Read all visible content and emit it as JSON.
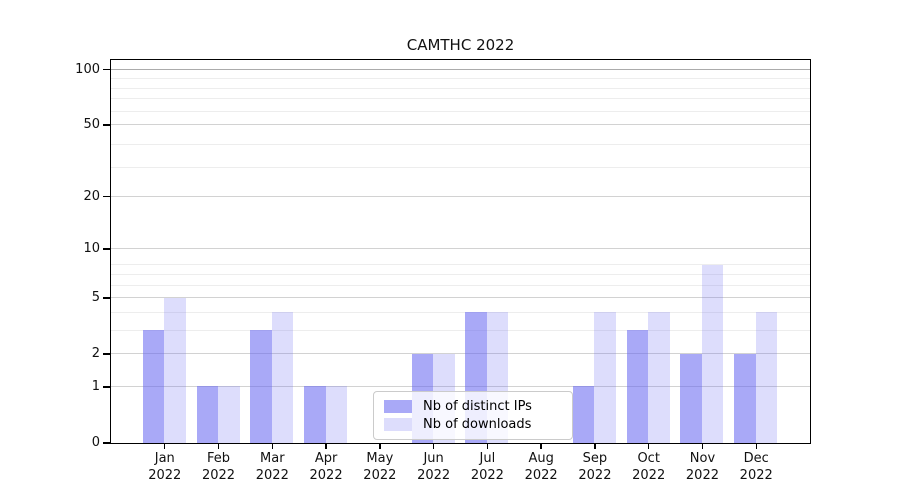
{
  "title": "CAMTHC 2022",
  "chart_data": {
    "type": "bar",
    "title": "CAMTHC 2022",
    "months": [
      "Jan",
      "Feb",
      "Mar",
      "Apr",
      "May",
      "Jun",
      "Jul",
      "Aug",
      "Sep",
      "Oct",
      "Nov",
      "Dec"
    ],
    "year": "2022",
    "categories": [
      "Jan 2022",
      "Feb 2022",
      "Mar 2022",
      "Apr 2022",
      "May 2022",
      "Jun 2022",
      "Jul 2022",
      "Aug 2022",
      "Sep 2022",
      "Oct 2022",
      "Nov 2022",
      "Dec 2022"
    ],
    "series": [
      {
        "name": "Nb of distinct IPs",
        "color": "rgba(98,98,240,0.55)",
        "values": [
          3,
          1,
          3,
          1,
          0,
          2,
          4,
          0,
          1,
          3,
          2,
          2
        ]
      },
      {
        "name": "Nb of downloads",
        "color": "rgba(98,98,240,0.22)",
        "values": [
          5,
          1,
          4,
          1,
          0,
          2,
          4,
          0,
          4,
          4,
          8,
          4
        ]
      }
    ],
    "yscale": "log1p",
    "ylim": [
      0,
      113
    ],
    "y_major_ticks": [
      0,
      1,
      2,
      5,
      10,
      20,
      50,
      100
    ],
    "y_minor_gridlines": [
      3,
      4,
      6,
      7,
      8,
      29,
      39,
      59,
      69,
      79,
      89
    ],
    "xlabel": "",
    "ylabel": "",
    "grid": "horizontal major+minor",
    "legend_position": "lower center inside",
    "background_color": "#ffffff",
    "axis_color": "#000000"
  }
}
